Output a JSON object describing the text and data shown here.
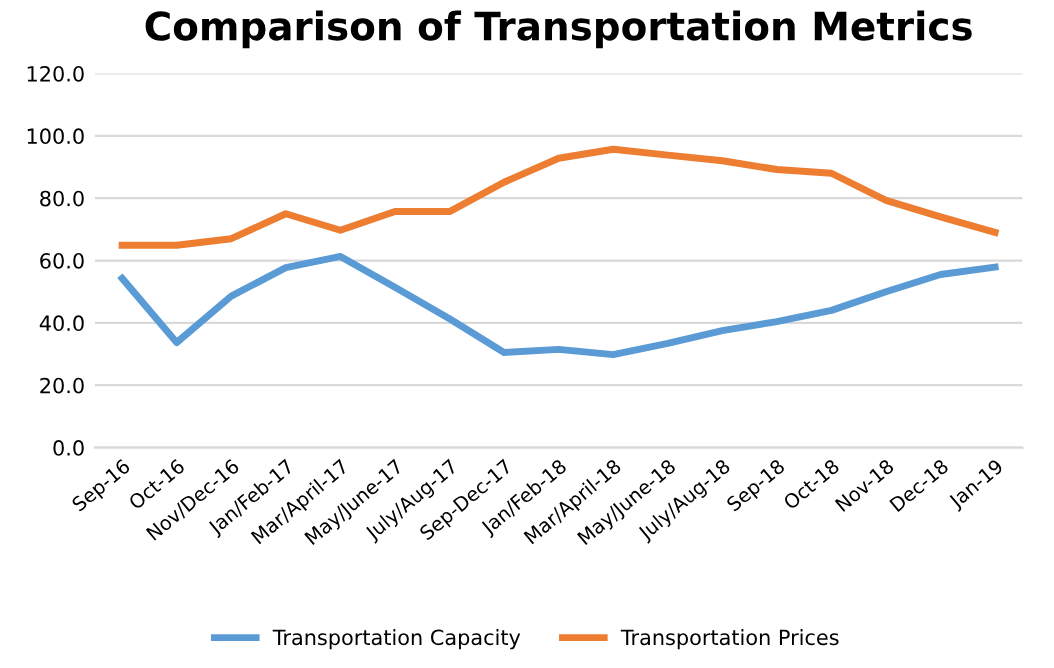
{
  "chart_data": {
    "type": "line",
    "title": "Comparison of Transportation Metrics",
    "categories": [
      "Sep-16",
      "Oct-16",
      "Nov/Dec-16",
      "Jan/Feb-17",
      "Mar/April-17",
      "May/June-17",
      "July/Aug-17",
      "Sep-Dec-17",
      "Jan/Feb-18",
      "Mar/April-18",
      "May/June-18",
      "July/Aug-18",
      "Sep-18",
      "Oct-18",
      "Nov-18",
      "Dec-18",
      "Jan-19"
    ],
    "series": [
      {
        "name": "Transportation Capacity",
        "color": "#5b9bd5",
        "values": [
          54.3,
          33.7,
          48.6,
          57.7,
          61.3,
          51.4,
          41.3,
          30.5,
          31.5,
          29.8,
          33.4,
          37.5,
          40.4,
          44.0,
          50.0,
          55.5,
          57.9
        ]
      },
      {
        "name": "Transportation Prices",
        "color": "#ed7d31",
        "values": [
          64.9,
          64.9,
          67.0,
          75.0,
          69.7,
          75.7,
          75.7,
          85.1,
          92.8,
          95.7,
          93.8,
          92.0,
          89.2,
          88.0,
          79.3,
          74.0,
          69.0
        ]
      }
    ],
    "ylim": [
      0,
      120
    ],
    "yticks": [
      {
        "value": 0,
        "label": "0.0"
      },
      {
        "value": 20,
        "label": "20.0"
      },
      {
        "value": 40,
        "label": "40.0"
      },
      {
        "value": 60,
        "label": "60.0"
      },
      {
        "value": 80,
        "label": "80.0"
      },
      {
        "value": 100,
        "label": "100.0"
      },
      {
        "value": 120,
        "label": "120.0"
      }
    ],
    "grid": "y",
    "legend": "bottom",
    "marker": "none",
    "line_style": "solid"
  }
}
